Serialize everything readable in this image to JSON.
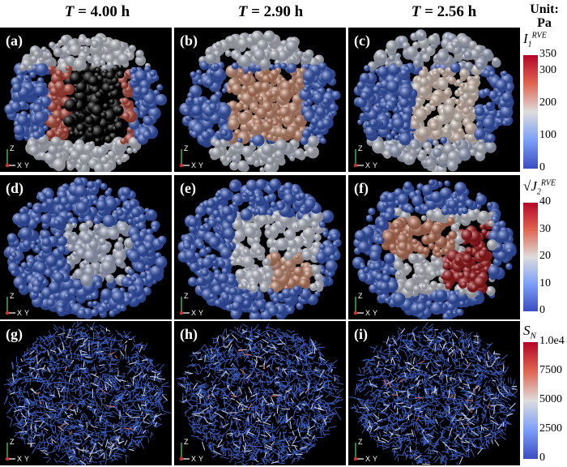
{
  "columns": [
    {
      "label": "T",
      "value": "= 4.00 h"
    },
    {
      "label": "T",
      "value": "= 2.90 h"
    },
    {
      "label": "T",
      "value": "= 2.56 h"
    }
  ],
  "panels": [
    "(a)",
    "(b)",
    "(c)",
    "(d)",
    "(e)",
    "(f)",
    "(g)",
    "(h)",
    "(i)"
  ],
  "unit": {
    "line1": "Unit:",
    "line2": "Pa"
  },
  "colorbars": [
    {
      "title_main": "I",
      "title_sub": "1",
      "title_sup": "RVE",
      "ticks": [
        "350",
        "300",
        "200",
        "100",
        "0"
      ]
    },
    {
      "title_main": "J",
      "title_sub": "2",
      "title_sup": "RVE",
      "ticks": [
        "40",
        "30",
        "20",
        "10",
        "0"
      ]
    },
    {
      "title_main": "S",
      "title_sub": "N",
      "title_sup": "",
      "ticks": [
        "1.0e4",
        "7500",
        "5000",
        "2500",
        "0"
      ]
    }
  ],
  "axis_labels": {
    "z": "Z",
    "x": "X",
    "y": "Y"
  },
  "colors": {
    "blue": "#3a5fd0",
    "white": "#dde2ec",
    "red": "#b41e22",
    "orange": "#d98a6a"
  }
}
